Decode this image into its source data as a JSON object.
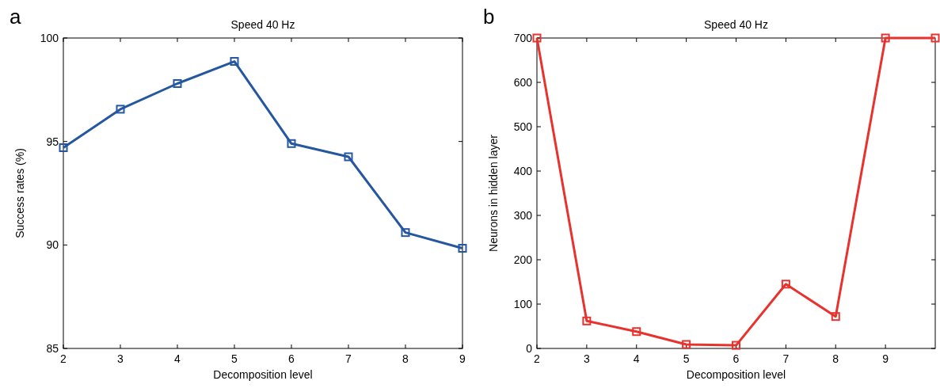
{
  "chart_data": [
    {
      "type": "line",
      "title": "Speed 40 Hz",
      "xlabel": "Decomposition level",
      "ylabel": "Success rates (%)",
      "annotations": [
        "a"
      ],
      "x": [
        2,
        3,
        4,
        5,
        6,
        7,
        8,
        9
      ],
      "series": [
        {
          "color": "#2557a0",
          "values": [
            94.7,
            96.56,
            97.8,
            98.87,
            94.9,
            94.26,
            90.6,
            89.84
          ]
        }
      ],
      "xlim": [
        2,
        9
      ],
      "xticks": [
        2,
        3,
        4,
        5,
        6,
        7,
        8,
        9
      ],
      "ylim": [
        85,
        100
      ],
      "yticks": [
        85,
        90,
        95,
        100
      ],
      "grid": false,
      "marker": "square",
      "line_style": "solid"
    },
    {
      "type": "line",
      "title": "Speed 40 Hz",
      "xlabel": "Decomposition level",
      "ylabel": "Neurons in hidden layer",
      "annotations": [
        "b"
      ],
      "x": [
        2,
        3,
        4,
        5,
        6,
        7,
        8,
        9,
        10
      ],
      "series": [
        {
          "color": "#e8322e",
          "values": [
            700,
            62,
            38,
            9,
            7,
            145,
            72,
            700,
            700
          ]
        }
      ],
      "xlim": [
        2,
        10
      ],
      "xticks": [
        2,
        3,
        4,
        5,
        6,
        7,
        8,
        9
      ],
      "ylim": [
        0,
        700
      ],
      "yticks": [
        0,
        100,
        200,
        300,
        400,
        500,
        600,
        700
      ],
      "grid": false,
      "marker": "square",
      "line_style": "solid"
    }
  ]
}
